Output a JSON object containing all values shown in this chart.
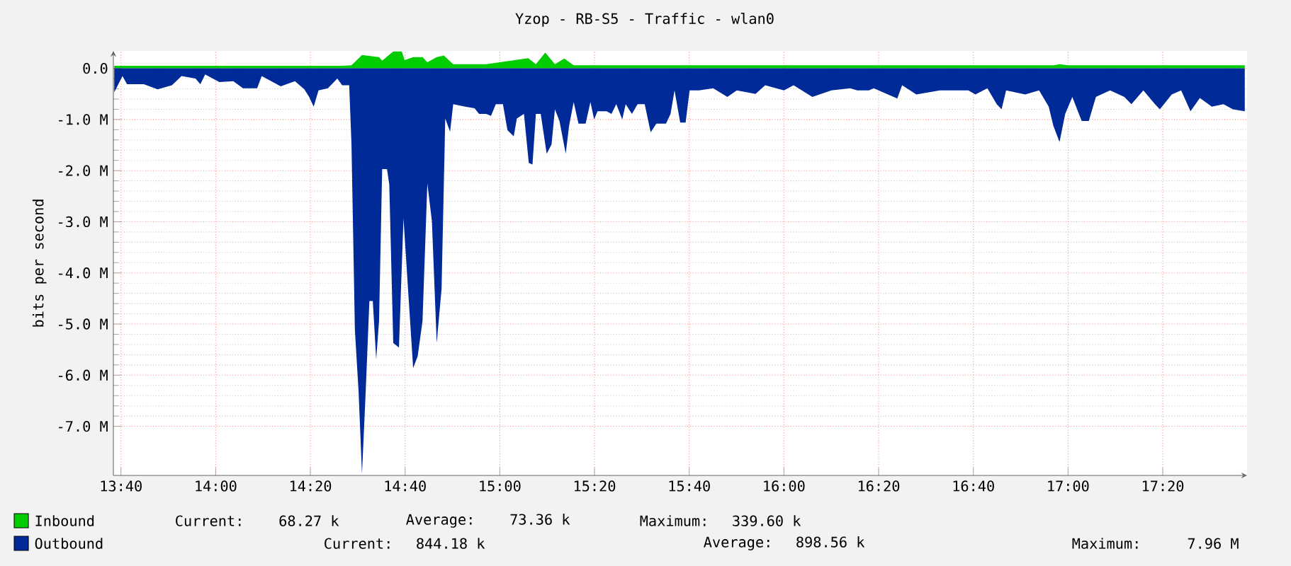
{
  "chart_data": {
    "type": "area",
    "title": "Yzop - RB-S5 - Traffic - wlan0",
    "ylabel": "bits per second",
    "xlim": [
      13.64,
      17.63
    ],
    "ylim": [
      -7.96,
      0.34
    ],
    "xticks": [
      {
        "value": 13.6667,
        "label": "13:40"
      },
      {
        "value": 14.0,
        "label": "14:00"
      },
      {
        "value": 14.3333,
        "label": "14:20"
      },
      {
        "value": 14.6667,
        "label": "14:40"
      },
      {
        "value": 15.0,
        "label": "15:00"
      },
      {
        "value": 15.3333,
        "label": "15:20"
      },
      {
        "value": 15.6667,
        "label": "15:40"
      },
      {
        "value": 16.0,
        "label": "16:00"
      },
      {
        "value": 16.3333,
        "label": "16:20"
      },
      {
        "value": 16.6667,
        "label": "16:40"
      },
      {
        "value": 17.0,
        "label": "17:00"
      },
      {
        "value": 17.3333,
        "label": "17:20"
      }
    ],
    "yticks": [
      {
        "value": 0,
        "label": "0.0"
      },
      {
        "value": -1,
        "label": "-1.0 M"
      },
      {
        "value": -2,
        "label": "-2.0 M"
      },
      {
        "value": -3,
        "label": "-3.0 M"
      },
      {
        "value": -4,
        "label": "-4.0 M"
      },
      {
        "value": -5,
        "label": "-5.0 M"
      },
      {
        "value": -6,
        "label": "-6.0 M"
      },
      {
        "value": -7,
        "label": "-7.0 M"
      }
    ],
    "grid": true,
    "legend": "bottom",
    "series": [
      {
        "name": "Inbound",
        "color": "#00cc00",
        "x": [
          13.643,
          14.445,
          14.478,
          14.515,
          14.575,
          14.586,
          14.625,
          14.655,
          14.665,
          14.695,
          14.728,
          14.745,
          14.778,
          14.803,
          14.836,
          14.952,
          15.1,
          15.127,
          15.16,
          15.194,
          15.227,
          15.26,
          16.95,
          16.97,
          17.0,
          17.622
        ],
        "values": [
          0.05,
          0.05,
          0.06,
          0.26,
          0.22,
          0.15,
          0.33,
          0.33,
          0.16,
          0.22,
          0.22,
          0.12,
          0.22,
          0.25,
          0.08,
          0.08,
          0.2,
          0.08,
          0.31,
          0.08,
          0.19,
          0.06,
          0.06,
          0.08,
          0.06,
          0.06
        ]
      },
      {
        "name": "Outbound",
        "color": "#002a97",
        "x": [
          13.643,
          13.672,
          13.688,
          13.747,
          13.796,
          13.846,
          13.88,
          13.929,
          13.946,
          13.963,
          14.013,
          14.062,
          14.096,
          14.146,
          14.162,
          14.229,
          14.279,
          14.312,
          14.329,
          14.345,
          14.362,
          14.395,
          14.428,
          14.445,
          14.47,
          14.478,
          14.49,
          14.503,
          14.515,
          14.528,
          14.541,
          14.553,
          14.565,
          14.575,
          14.586,
          14.603,
          14.611,
          14.625,
          14.645,
          14.661,
          14.678,
          14.695,
          14.711,
          14.728,
          14.745,
          14.761,
          14.778,
          14.795,
          14.808,
          14.825,
          14.836,
          14.878,
          14.911,
          14.927,
          14.952,
          14.969,
          14.986,
          15.011,
          15.027,
          15.049,
          15.06,
          15.085,
          15.102,
          15.115,
          15.127,
          15.144,
          15.165,
          15.182,
          15.194,
          15.21,
          15.232,
          15.244,
          15.26,
          15.277,
          15.302,
          15.319,
          15.332,
          15.344,
          15.376,
          15.393,
          15.41,
          15.431,
          15.443,
          15.465,
          15.485,
          15.51,
          15.531,
          15.551,
          15.585,
          15.601,
          15.615,
          15.635,
          15.654,
          15.668,
          15.701,
          15.751,
          15.801,
          15.834,
          15.9,
          15.934,
          16.0,
          16.034,
          16.1,
          16.167,
          16.233,
          16.258,
          16.299,
          16.316,
          16.399,
          16.416,
          16.466,
          16.549,
          16.649,
          16.674,
          16.716,
          16.749,
          16.766,
          16.782,
          16.849,
          16.898,
          16.932,
          16.948,
          16.97,
          16.99,
          17.015,
          17.048,
          17.073,
          17.098,
          17.148,
          17.198,
          17.223,
          17.265,
          17.306,
          17.323,
          17.365,
          17.398,
          17.431,
          17.464,
          17.506,
          17.547,
          17.58,
          17.622
        ],
        "values": [
          -0.47,
          -0.15,
          -0.31,
          -0.31,
          -0.41,
          -0.33,
          -0.15,
          -0.2,
          -0.31,
          -0.12,
          -0.27,
          -0.25,
          -0.39,
          -0.39,
          -0.15,
          -0.35,
          -0.25,
          -0.41,
          -0.56,
          -0.75,
          -0.43,
          -0.39,
          -0.2,
          -0.33,
          -0.33,
          -1.49,
          -5.12,
          -6.32,
          -7.93,
          -6.32,
          -4.55,
          -4.55,
          -5.69,
          -4.94,
          -1.97,
          -1.97,
          -2.27,
          -5.37,
          -5.46,
          -2.93,
          -4.4,
          -5.86,
          -5.63,
          -4.94,
          -2.25,
          -2.99,
          -5.37,
          -4.31,
          -0.98,
          -1.24,
          -0.7,
          -0.75,
          -0.78,
          -0.89,
          -0.89,
          -0.93,
          -0.7,
          -0.7,
          -1.21,
          -1.33,
          -0.98,
          -0.89,
          -1.85,
          -1.88,
          -0.89,
          -0.89,
          -1.67,
          -1.49,
          -0.8,
          -1.03,
          -1.67,
          -1.12,
          -0.66,
          -1.08,
          -1.08,
          -0.66,
          -1.0,
          -0.84,
          -0.84,
          -0.89,
          -0.7,
          -1.0,
          -0.7,
          -0.89,
          -0.7,
          -0.7,
          -1.25,
          -1.08,
          -1.08,
          -0.89,
          -0.43,
          -1.06,
          -1.06,
          -0.43,
          -0.43,
          -0.39,
          -0.56,
          -0.43,
          -0.5,
          -0.33,
          -0.43,
          -0.33,
          -0.56,
          -0.43,
          -0.39,
          -0.43,
          -0.43,
          -0.39,
          -0.59,
          -0.33,
          -0.51,
          -0.43,
          -0.43,
          -0.51,
          -0.39,
          -0.7,
          -0.8,
          -0.43,
          -0.51,
          -0.43,
          -0.75,
          -1.12,
          -1.44,
          -0.89,
          -0.56,
          -1.03,
          -1.03,
          -0.56,
          -0.43,
          -0.56,
          -0.7,
          -0.43,
          -0.7,
          -0.8,
          -0.51,
          -0.43,
          -0.84,
          -0.58,
          -0.75,
          -0.7,
          -0.8,
          -0.84
        ]
      }
    ],
    "annotations": [
      "Current:   68.27 k",
      "Average:   73.36 k",
      "Maximum:  339.60 k",
      "Current:  844.18 k",
      "Average:  898.56 k",
      "Maximum:    7.96 M"
    ]
  }
}
